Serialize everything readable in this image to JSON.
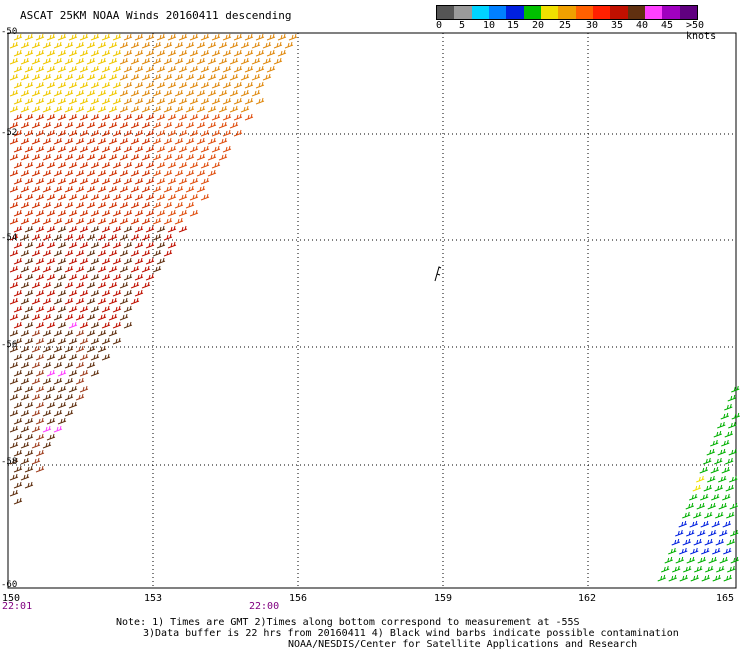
{
  "title": "ASCAT 25KM NOAA Winds 20160411 descending",
  "legend": {
    "colors": [
      "#555555",
      "#9a9a9a",
      "#00d4ff",
      "#0080ff",
      "#0020e0",
      "#00c000",
      "#f0e000",
      "#f0a000",
      "#ff6000",
      "#ff2000",
      "#c01000",
      "#603010",
      "#ff40ff",
      "#a000c0",
      "#600080"
    ],
    "labels": [
      "0",
      "5",
      "10",
      "15",
      "20",
      "25",
      "30",
      "35",
      "40",
      "45",
      ">50 knots"
    ]
  },
  "axes": {
    "x_ticks": [
      "150",
      "153",
      "156",
      "159",
      "162",
      "165"
    ],
    "y_ticks": [
      "-50",
      "-52",
      "-54",
      "-56",
      "-58",
      "-60"
    ]
  },
  "times": [
    "22:01",
    "22:00"
  ],
  "notes": [
    "Note: 1) Times are GMT 2)Times along bottom correspond to measurement at -55S",
    "3)Data buffer is 22 hrs from 20160411 4) Black wind barbs indicate possible contamination",
    "NOAA/NESDIS/Center for Satellite Applications and Research"
  ]
}
